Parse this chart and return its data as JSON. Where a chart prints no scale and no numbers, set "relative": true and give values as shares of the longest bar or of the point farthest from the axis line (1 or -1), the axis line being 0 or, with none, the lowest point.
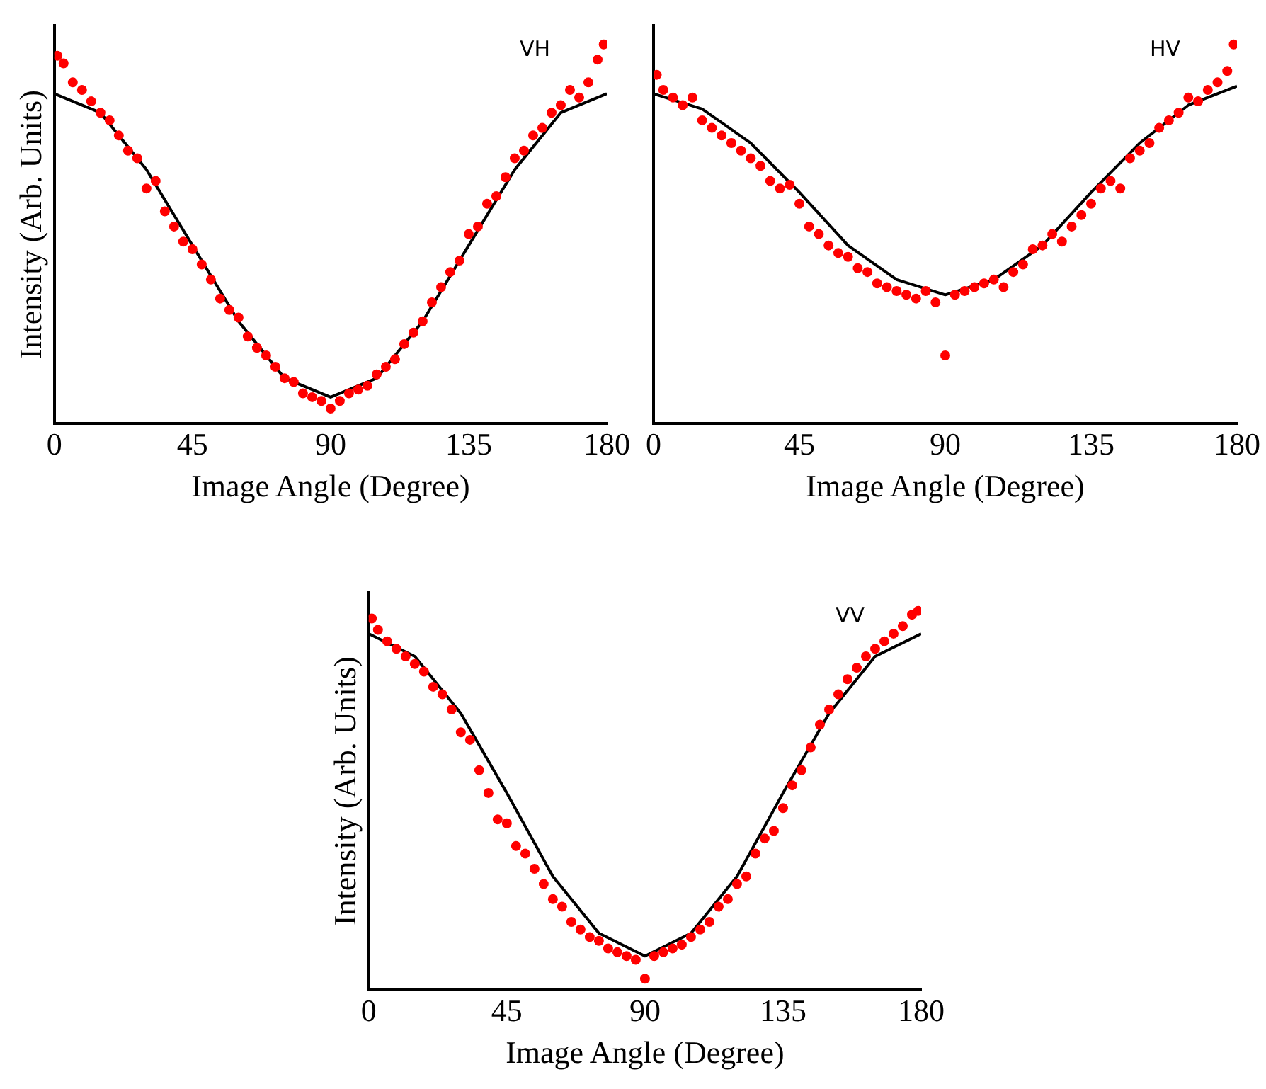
{
  "chart_data": [
    {
      "type": "scatter",
      "xlabel": "Image Angle (Degree)",
      "ylabel": "Intensity (Arb. Units)",
      "annotations": [
        "VH"
      ],
      "relative": true,
      "xlim": [
        0,
        180
      ],
      "xticks": [
        0,
        45,
        90,
        135,
        180
      ],
      "tick_labels": "x",
      "grid": false,
      "legend": false,
      "marker": "circle",
      "series": [
        {
          "type": "scatter",
          "color": "#ff0000",
          "x": [
            1,
            3,
            6,
            9,
            12,
            15,
            18,
            21,
            24,
            27,
            30,
            33,
            36,
            39,
            42,
            45,
            48,
            51,
            54,
            57,
            60,
            63,
            66,
            69,
            72,
            75,
            78,
            81,
            84,
            87,
            90,
            93,
            96,
            99,
            102,
            105,
            108,
            111,
            114,
            117,
            120,
            123,
            126,
            129,
            132,
            135,
            138,
            141,
            144,
            147,
            150,
            153,
            156,
            159,
            162,
            165,
            168,
            171,
            174,
            177,
            179
          ],
          "values": [
            0.97,
            0.95,
            0.9,
            0.88,
            0.85,
            0.82,
            0.8,
            0.76,
            0.72,
            0.7,
            0.62,
            0.64,
            0.56,
            0.52,
            0.48,
            0.46,
            0.42,
            0.38,
            0.33,
            0.3,
            0.28,
            0.23,
            0.2,
            0.18,
            0.15,
            0.12,
            0.11,
            0.08,
            0.07,
            0.06,
            0.04,
            0.06,
            0.08,
            0.09,
            0.1,
            0.13,
            0.15,
            0.17,
            0.21,
            0.24,
            0.27,
            0.32,
            0.36,
            0.4,
            0.43,
            0.5,
            0.52,
            0.58,
            0.6,
            0.65,
            0.7,
            0.72,
            0.76,
            0.78,
            0.82,
            0.84,
            0.88,
            0.86,
            0.9,
            0.96,
            1.0
          ]
        },
        {
          "type": "line",
          "color": "#000000",
          "marker": "none",
          "x": [
            0,
            15,
            30,
            45,
            60,
            75,
            90,
            105,
            120,
            135,
            150,
            165,
            180
          ],
          "values": [
            0.87,
            0.82,
            0.67,
            0.47,
            0.27,
            0.12,
            0.07,
            0.12,
            0.27,
            0.47,
            0.67,
            0.82,
            0.87
          ]
        }
      ]
    },
    {
      "type": "scatter",
      "xlabel": "Image Angle (Degree)",
      "annotations": [
        "HV"
      ],
      "relative": true,
      "xlim": [
        0,
        180
      ],
      "xticks": [
        0,
        45,
        90,
        135,
        180
      ],
      "tick_labels": "x",
      "grid": false,
      "legend": false,
      "marker": "circle",
      "series": [
        {
          "type": "scatter",
          "color": "#ff0000",
          "x": [
            1,
            3,
            6,
            9,
            12,
            15,
            18,
            21,
            24,
            27,
            30,
            33,
            36,
            39,
            42,
            45,
            48,
            51,
            54,
            57,
            60,
            63,
            66,
            69,
            72,
            75,
            78,
            81,
            84,
            87,
            90,
            93,
            96,
            99,
            102,
            105,
            108,
            111,
            114,
            117,
            120,
            123,
            126,
            129,
            132,
            135,
            138,
            141,
            144,
            147,
            150,
            153,
            156,
            159,
            162,
            165,
            168,
            171,
            174,
            177,
            179
          ],
          "values": [
            0.92,
            0.88,
            0.86,
            0.84,
            0.86,
            0.8,
            0.78,
            0.76,
            0.74,
            0.72,
            0.7,
            0.68,
            0.64,
            0.62,
            0.63,
            0.58,
            0.52,
            0.5,
            0.47,
            0.45,
            0.44,
            0.41,
            0.4,
            0.37,
            0.36,
            0.35,
            0.34,
            0.33,
            0.35,
            0.32,
            0.18,
            0.34,
            0.35,
            0.36,
            0.37,
            0.38,
            0.36,
            0.4,
            0.42,
            0.46,
            0.47,
            0.5,
            0.48,
            0.52,
            0.55,
            0.58,
            0.62,
            0.64,
            0.62,
            0.7,
            0.72,
            0.74,
            0.78,
            0.8,
            0.82,
            0.86,
            0.85,
            0.88,
            0.9,
            0.93,
            1.0
          ]
        },
        {
          "type": "line",
          "color": "#000000",
          "marker": "none",
          "x": [
            0,
            15,
            30,
            45,
            60,
            75,
            90,
            105,
            120,
            135,
            150,
            165,
            180
          ],
          "values": [
            0.87,
            0.83,
            0.74,
            0.61,
            0.47,
            0.38,
            0.34,
            0.38,
            0.47,
            0.61,
            0.74,
            0.84,
            0.89
          ]
        }
      ]
    },
    {
      "type": "scatter",
      "xlabel": "Image Angle (Degree)",
      "ylabel": "Intensity (Arb. Units)",
      "annotations": [
        "VV"
      ],
      "relative": true,
      "xlim": [
        0,
        180
      ],
      "xticks": [
        0,
        45,
        90,
        135,
        180
      ],
      "tick_labels": "x",
      "grid": false,
      "legend": false,
      "marker": "circle",
      "series": [
        {
          "type": "scatter",
          "color": "#ff0000",
          "x": [
            1,
            3,
            6,
            9,
            12,
            15,
            18,
            21,
            24,
            27,
            30,
            33,
            36,
            39,
            42,
            45,
            48,
            51,
            54,
            57,
            60,
            63,
            66,
            69,
            72,
            75,
            78,
            81,
            84,
            87,
            90,
            93,
            96,
            99,
            102,
            105,
            108,
            111,
            114,
            117,
            120,
            123,
            126,
            129,
            132,
            135,
            138,
            141,
            144,
            147,
            150,
            153,
            156,
            159,
            162,
            165,
            168,
            171,
            174,
            177,
            179
          ],
          "values": [
            0.98,
            0.95,
            0.92,
            0.9,
            0.88,
            0.86,
            0.84,
            0.8,
            0.78,
            0.74,
            0.68,
            0.66,
            0.58,
            0.52,
            0.45,
            0.44,
            0.38,
            0.36,
            0.32,
            0.28,
            0.24,
            0.22,
            0.18,
            0.16,
            0.14,
            0.13,
            0.11,
            0.1,
            0.09,
            0.08,
            0.03,
            0.09,
            0.1,
            0.11,
            0.12,
            0.14,
            0.16,
            0.18,
            0.22,
            0.24,
            0.28,
            0.3,
            0.36,
            0.4,
            0.42,
            0.48,
            0.54,
            0.58,
            0.64,
            0.7,
            0.74,
            0.78,
            0.82,
            0.85,
            0.88,
            0.9,
            0.92,
            0.94,
            0.96,
            0.99,
            1.0
          ]
        },
        {
          "type": "line",
          "color": "#000000",
          "marker": "none",
          "x": [
            0,
            15,
            30,
            45,
            60,
            75,
            90,
            105,
            120,
            135,
            150,
            165,
            180
          ],
          "values": [
            0.94,
            0.88,
            0.73,
            0.52,
            0.3,
            0.15,
            0.09,
            0.15,
            0.3,
            0.52,
            0.73,
            0.88,
            0.94
          ]
        }
      ]
    }
  ]
}
